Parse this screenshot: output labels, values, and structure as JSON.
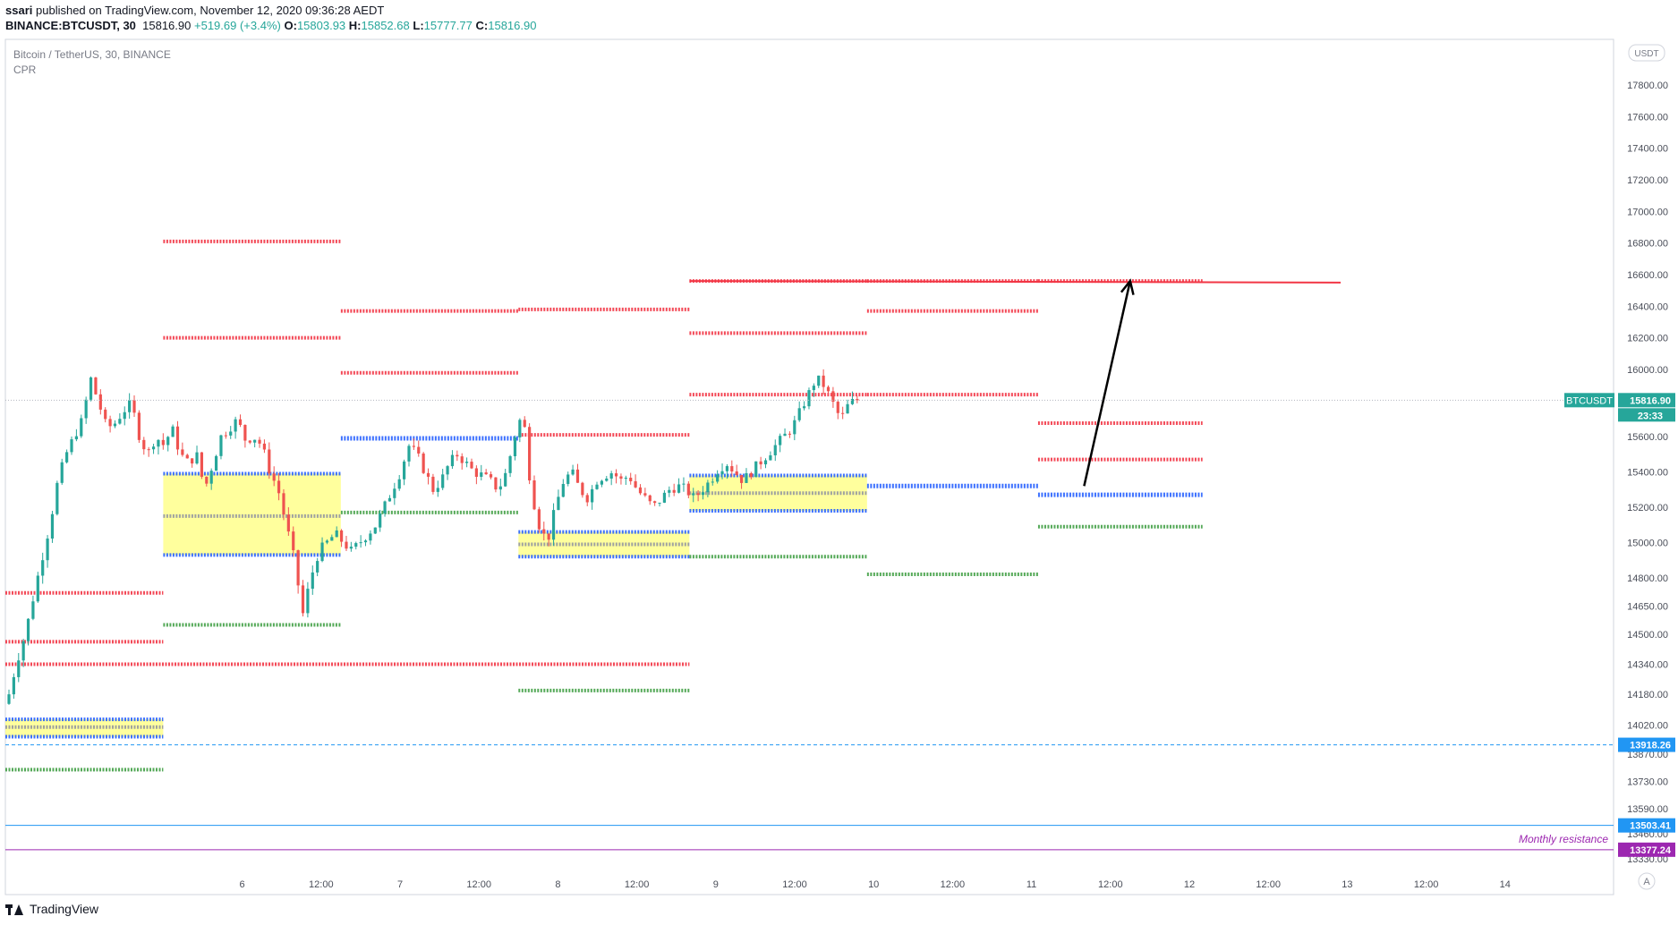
{
  "header": {
    "publisher": "ssari",
    "published_text": "published on TradingView.com, November 12, 2020 09:36:28 AEDT",
    "symbol": "BINANCE:BTCUSDT, 30",
    "last": "15816.90",
    "change": "+519.69 (+3.4%)",
    "o_label": "O:",
    "o": "15803.93",
    "h_label": "H:",
    "h": "15852.68",
    "l_label": "L:",
    "l": "15777.77",
    "c_label": "C:",
    "c": "15816.90"
  },
  "legend": {
    "title": "Bitcoin / TetherUS, 30, BINANCE",
    "indicator": "CPR"
  },
  "footer": {
    "brand": "TradingView"
  },
  "colors": {
    "up": "#26a69a",
    "down": "#ef5350",
    "red": "#f23645",
    "blue": "#2962ff",
    "green": "#4caf50",
    "grey": "#9598a1",
    "yellow": "#ffff8c",
    "purple": "#9c27b0",
    "cyan": "#2196f3",
    "axis_text": "#4a4e59"
  },
  "chart_data": {
    "type": "candlestick",
    "symbol_badge": "BTCUSDT",
    "current_price": "15816.90",
    "countdown": "23:33",
    "currency_badge": "USDT",
    "scale_mode_badge": "A",
    "y_ticks": [
      17800,
      17600,
      17400,
      17200,
      17000,
      16800,
      16600,
      16400,
      16200,
      16000,
      15800,
      15600,
      15400,
      15200,
      15000,
      14800,
      14650,
      14500,
      14340,
      14180,
      14020,
      13870,
      13730,
      13590,
      13460,
      13330
    ],
    "y_tick_labels": [
      "17800.00",
      "17600.00",
      "17400.00",
      "17200.00",
      "17000.00",
      "16800.00",
      "16600.00",
      "16400.00",
      "16200.00",
      "16000.00",
      "15800.00",
      "15600.00",
      "15400.00",
      "15200.00",
      "15000.00",
      "14800.00",
      "14650.00",
      "14500.00",
      "14340.00",
      "14180.00",
      "14020.00",
      "13870.00",
      "13730.00",
      "13590.00",
      "13460.00",
      "13330.00"
    ],
    "x_ticks": [
      {
        "t": 36,
        "label": "6"
      },
      {
        "t": 48,
        "label": "12:00"
      },
      {
        "t": 60,
        "label": "7"
      },
      {
        "t": 72,
        "label": "12:00"
      },
      {
        "t": 84,
        "label": "8"
      },
      {
        "t": 96,
        "label": "12:00"
      },
      {
        "t": 108,
        "label": "9"
      },
      {
        "t": 120,
        "label": "12:00"
      },
      {
        "t": 132,
        "label": "10"
      },
      {
        "t": 144,
        "label": "12:00"
      },
      {
        "t": 156,
        "label": "11"
      },
      {
        "t": 168,
        "label": "12:00"
      },
      {
        "t": 180,
        "label": "12"
      },
      {
        "t": 192,
        "label": "12:00"
      },
      {
        "t": 204,
        "label": "13"
      },
      {
        "t": 216,
        "label": "12:00"
      },
      {
        "t": 228,
        "label": "14"
      }
    ],
    "close_path": [
      [
        25,
        14180
      ],
      [
        26,
        14360
      ],
      [
        27,
        14500
      ],
      [
        28,
        14700
      ],
      [
        29,
        14900
      ],
      [
        30,
        15100
      ],
      [
        31,
        15350
      ],
      [
        32,
        15500
      ],
      [
        33,
        15600
      ],
      [
        34,
        15700
      ],
      [
        35,
        15950
      ],
      [
        36,
        15800
      ],
      [
        37,
        15650
      ],
      [
        38,
        15680
      ],
      [
        39,
        15750
      ],
      [
        40,
        15800
      ],
      [
        41,
        15600
      ],
      [
        42,
        15500
      ],
      [
        43,
        15600
      ],
      [
        44,
        15550
      ],
      [
        45,
        15650
      ],
      [
        46,
        15500
      ],
      [
        47,
        15450
      ],
      [
        48,
        15500
      ],
      [
        49,
        15300
      ],
      [
        50,
        15450
      ],
      [
        51,
        15600
      ],
      [
        52,
        15650
      ],
      [
        53,
        15700
      ],
      [
        54,
        15580
      ],
      [
        55,
        15600
      ],
      [
        56,
        15550
      ],
      [
        57,
        15400
      ],
      [
        58,
        15300
      ],
      [
        59,
        15100
      ],
      [
        60,
        14900
      ],
      [
        61,
        14600
      ],
      [
        62,
        14800
      ],
      [
        63,
        14950
      ],
      [
        64,
        15000
      ],
      [
        65,
        15050
      ],
      [
        66,
        15000
      ],
      [
        67,
        14950
      ],
      [
        68,
        15000
      ],
      [
        69,
        15050
      ],
      [
        70,
        15100
      ],
      [
        71,
        15200
      ],
      [
        72,
        15300
      ],
      [
        73,
        15400
      ],
      [
        74,
        15550
      ],
      [
        75,
        15500
      ],
      [
        76,
        15400
      ],
      [
        77,
        15300
      ],
      [
        78,
        15350
      ],
      [
        79,
        15450
      ],
      [
        80,
        15500
      ],
      [
        81,
        15450
      ],
      [
        82,
        15400
      ],
      [
        83,
        15380
      ],
      [
        84,
        15350
      ],
      [
        85,
        15300
      ],
      [
        86,
        15400
      ],
      [
        87,
        15600
      ],
      [
        88,
        15750
      ],
      [
        89,
        15300
      ],
      [
        90,
        15100
      ],
      [
        91,
        15000
      ],
      [
        92,
        15200
      ],
      [
        93,
        15350
      ],
      [
        94,
        15400
      ],
      [
        95,
        15300
      ],
      [
        96,
        15250
      ],
      [
        97,
        15350
      ],
      [
        98,
        15380
      ],
      [
        99,
        15400
      ],
      [
        100,
        15350
      ],
      [
        101,
        15380
      ],
      [
        102,
        15300
      ],
      [
        103,
        15250
      ],
      [
        104,
        15200
      ],
      [
        105,
        15250
      ],
      [
        106,
        15300
      ],
      [
        107,
        15320
      ],
      [
        108,
        15300
      ],
      [
        109,
        15250
      ],
      [
        110,
        15300
      ],
      [
        111,
        15350
      ],
      [
        112,
        15420
      ],
      [
        113,
        15450
      ],
      [
        114,
        15400
      ],
      [
        115,
        15350
      ],
      [
        116,
        15400
      ],
      [
        117,
        15450
      ],
      [
        118,
        15500
      ],
      [
        119,
        15550
      ],
      [
        120,
        15600
      ],
      [
        121,
        15650
      ],
      [
        122,
        15750
      ],
      [
        123,
        15850
      ],
      [
        124,
        15950
      ],
      [
        125,
        15900
      ],
      [
        126,
        15800
      ],
      [
        127,
        15700
      ],
      [
        128,
        15800
      ],
      [
        129,
        15817
      ]
    ],
    "cpr_levels": [
      {
        "name": "R2",
        "color": "red",
        "t0": 0,
        "t1": 24,
        "y": 14720
      },
      {
        "name": "R1",
        "color": "red",
        "t0": 0,
        "t1": 24,
        "y": 14460
      },
      {
        "name": "R1b",
        "color": "red",
        "t0": 0,
        "t1": 104,
        "y": 14340
      },
      {
        "name": "TC",
        "color": "blue",
        "t0": 0,
        "t1": 24,
        "y": 14050
      },
      {
        "name": "P",
        "color": "grey",
        "t0": 0,
        "t1": 24,
        "y": 14010
      },
      {
        "name": "BC",
        "color": "blue",
        "t0": 0,
        "t1": 24,
        "y": 13960
      },
      {
        "name": "S1",
        "color": "green",
        "t0": 0,
        "t1": 24,
        "y": 13790
      },
      {
        "name": "R3",
        "color": "red",
        "t0": 24,
        "t1": 51,
        "y": 16810
      },
      {
        "name": "R2",
        "color": "red",
        "t0": 24,
        "t1": 51,
        "y": 16200
      },
      {
        "name": "TC",
        "color": "blue",
        "t0": 24,
        "t1": 51,
        "y": 15390
      },
      {
        "name": "P",
        "color": "grey",
        "t0": 24,
        "t1": 51,
        "y": 15150
      },
      {
        "name": "BC",
        "color": "blue",
        "t0": 24,
        "t1": 51,
        "y": 14930
      },
      {
        "name": "S1",
        "color": "green",
        "t0": 24,
        "t1": 51,
        "y": 14550
      },
      {
        "name": "R3",
        "color": "red",
        "t0": 51,
        "t1": 78,
        "y": 16370
      },
      {
        "name": "R2",
        "color": "red",
        "t0": 51,
        "t1": 78,
        "y": 15980
      },
      {
        "name": "TCBC",
        "color": "blue",
        "t0": 51,
        "t1": 78,
        "y": 15590
      },
      {
        "name": "S1",
        "color": "green",
        "t0": 51,
        "t1": 78,
        "y": 15170
      },
      {
        "name": "R3",
        "color": "red",
        "t0": 78,
        "t1": 104,
        "y": 16380
      },
      {
        "name": "R2",
        "color": "red",
        "t0": 78,
        "t1": 104,
        "y": 15610
      },
      {
        "name": "TC",
        "color": "blue",
        "t0": 78,
        "t1": 104,
        "y": 15060
      },
      {
        "name": "P",
        "color": "grey",
        "t0": 78,
        "t1": 104,
        "y": 14990
      },
      {
        "name": "BC",
        "color": "blue",
        "t0": 78,
        "t1": 104,
        "y": 14920
      },
      {
        "name": "S1",
        "color": "green",
        "t0": 78,
        "t1": 104,
        "y": 14200
      },
      {
        "name": "R3",
        "color": "red",
        "t0": 104,
        "t1": 131,
        "y": 16560
      },
      {
        "name": "R2",
        "color": "red",
        "t0": 104,
        "t1": 131,
        "y": 16230
      },
      {
        "name": "R1",
        "color": "red",
        "t0": 104,
        "t1": 131,
        "y": 15850
      },
      {
        "name": "TC",
        "color": "blue",
        "t0": 104,
        "t1": 131,
        "y": 15380
      },
      {
        "name": "P",
        "color": "grey",
        "t0": 104,
        "t1": 131,
        "y": 15280
      },
      {
        "name": "BC",
        "color": "blue",
        "t0": 104,
        "t1": 131,
        "y": 15180
      },
      {
        "name": "S1",
        "color": "green",
        "t0": 104,
        "t1": 131,
        "y": 14920
      },
      {
        "name": "R3",
        "color": "red",
        "t0": 131,
        "t1": 157,
        "y": 16560
      },
      {
        "name": "R2",
        "color": "red",
        "t0": 131,
        "t1": 157,
        "y": 16370
      },
      {
        "name": "R1",
        "color": "red",
        "t0": 131,
        "t1": 157,
        "y": 15850
      },
      {
        "name": "TCBC",
        "color": "blue",
        "t0": 131,
        "t1": 157,
        "y": 15320
      },
      {
        "name": "S1",
        "color": "green",
        "t0": 131,
        "t1": 157,
        "y": 14820
      },
      {
        "name": "R3",
        "color": "red",
        "t0": 157,
        "t1": 182,
        "y": 16560
      },
      {
        "name": "R2",
        "color": "red",
        "t0": 157,
        "t1": 182,
        "y": 15680
      },
      {
        "name": "R1",
        "color": "red",
        "t0": 157,
        "t1": 182,
        "y": 15470
      },
      {
        "name": "TCBC",
        "color": "blue",
        "t0": 157,
        "t1": 182,
        "y": 15270
      },
      {
        "name": "S1",
        "color": "green",
        "t0": 157,
        "t1": 182,
        "y": 15090
      }
    ],
    "yellow_zones": [
      {
        "t0": 0,
        "t1": 24,
        "y0": 13960,
        "y1": 14050
      },
      {
        "t0": 24,
        "t1": 51,
        "y0": 14930,
        "y1": 15390
      },
      {
        "t0": 78,
        "t1": 104,
        "y0": 14920,
        "y1": 15060
      },
      {
        "t0": 104,
        "t1": 131,
        "y0": 15180,
        "y1": 15380
      }
    ],
    "resistance_line": {
      "t0": 104,
      "t1": 203,
      "y0": 16560,
      "y1": 16550
    },
    "arrow": {
      "t0": 164,
      "y0": 15320,
      "t1": 171,
      "y1": 16560
    },
    "horizontal_lines": [
      {
        "name": "dashed-cyan",
        "y": 13918.26,
        "label": "13918.26"
      },
      {
        "name": "blue-line",
        "y": 13503.41,
        "label": "13503.41"
      },
      {
        "name": "monthly-resistance",
        "y": 13377.24,
        "label": "13377.24",
        "text": "Monthly resistance"
      }
    ]
  }
}
